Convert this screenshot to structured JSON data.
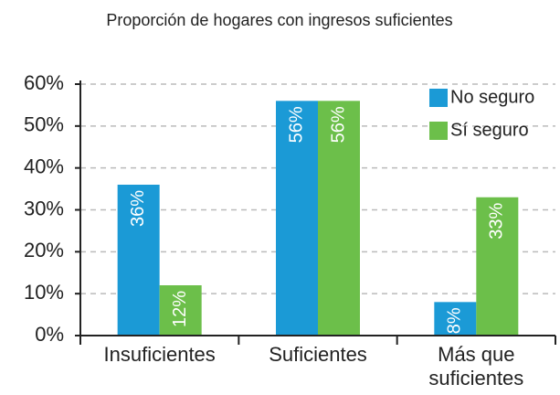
{
  "chart_data": {
    "type": "bar",
    "title": "Proporción de hogares con ingresos suficientes",
    "categories": [
      "Insuficientes",
      "Suficientes",
      "Más que suficientes"
    ],
    "series": [
      {
        "name": "No seguro",
        "color": "#1b9ad6",
        "values": [
          36,
          56,
          8
        ],
        "value_labels": [
          "36%",
          "56%",
          "8%"
        ]
      },
      {
        "name": "Sí seguro",
        "color": "#6cbf4a",
        "values": [
          12,
          56,
          33
        ],
        "value_labels": [
          "12%",
          "56%",
          "33%"
        ]
      }
    ],
    "ylim": [
      0,
      60
    ],
    "yticks": [
      {
        "value": 0,
        "label": "0%"
      },
      {
        "value": 10,
        "label": "10%"
      },
      {
        "value": 20,
        "label": "20%"
      },
      {
        "value": 30,
        "label": "30%"
      },
      {
        "value": 40,
        "label": "40%"
      },
      {
        "value": 50,
        "label": "50%"
      },
      {
        "value": 60,
        "label": "60%"
      }
    ],
    "grid": true,
    "legend": "upper right"
  }
}
